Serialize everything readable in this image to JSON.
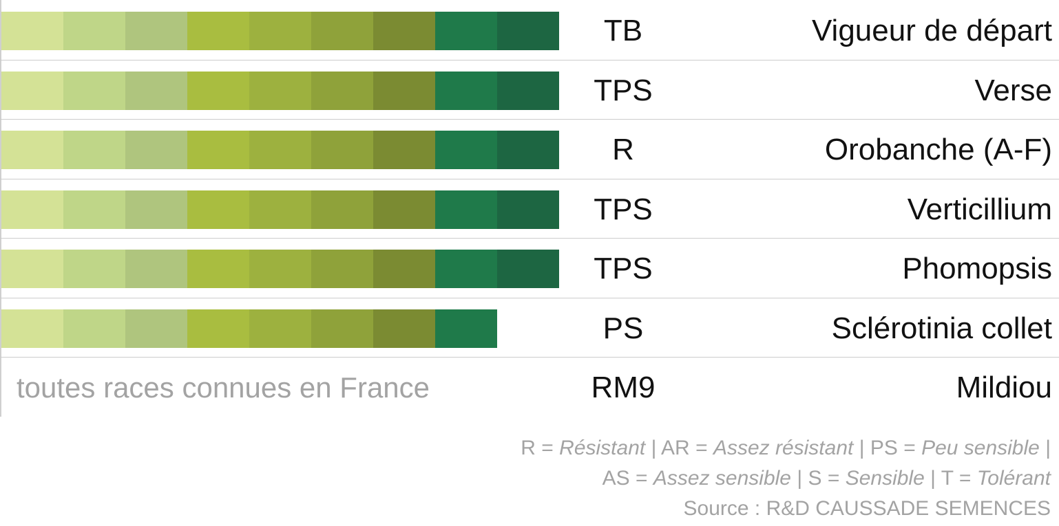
{
  "chart_data": {
    "type": "bar",
    "scale_max": 9,
    "palette": [
      "#d4e296",
      "#bfd688",
      "#afc57e",
      "#a9bd40",
      "#9db13f",
      "#8fa23a",
      "#7b8b32",
      "#1f7a4a",
      "#1d6642"
    ],
    "rows": [
      {
        "criterion": "Vigueur de départ",
        "rating": "TB",
        "value": 9,
        "note": ""
      },
      {
        "criterion": "Verse",
        "rating": "TPS",
        "value": 9,
        "note": ""
      },
      {
        "criterion": "Orobanche (A-F)",
        "rating": "R",
        "value": 9,
        "note": ""
      },
      {
        "criterion": "Verticillium",
        "rating": "TPS",
        "value": 9,
        "note": ""
      },
      {
        "criterion": "Phomopsis",
        "rating": "TPS",
        "value": 9,
        "note": ""
      },
      {
        "criterion": "Sclérotinia collet",
        "rating": "PS",
        "value": 8,
        "note": ""
      },
      {
        "criterion": "Mildiou",
        "rating": "RM9",
        "value": null,
        "note": "toutes races connues en France"
      }
    ]
  },
  "legend": {
    "items": [
      {
        "code": "R",
        "meaning": "Résistant"
      },
      {
        "code": "AR",
        "meaning": "Assez résistant"
      },
      {
        "code": "PS",
        "meaning": "Peu sensible"
      },
      {
        "code": "AS",
        "meaning": "Assez sensible"
      },
      {
        "code": "S",
        "meaning": "Sensible"
      },
      {
        "code": "T",
        "meaning": "Tolérant"
      }
    ],
    "source": "Source : R&D CAUSSADE SEMENCES"
  }
}
